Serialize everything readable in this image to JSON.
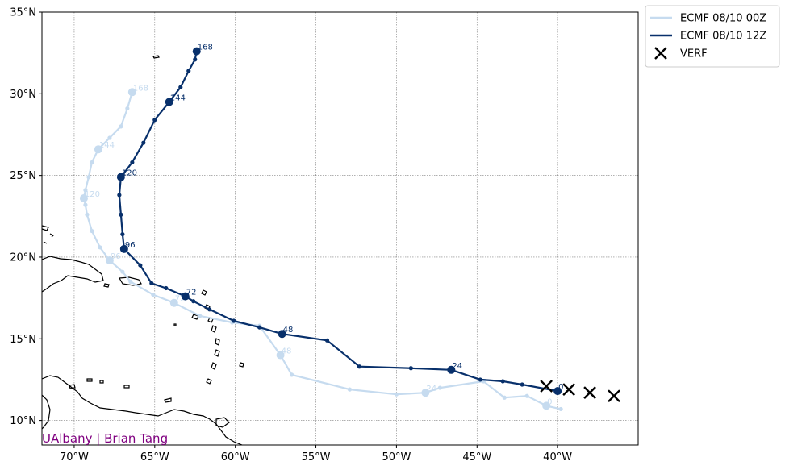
{
  "chart_data": {
    "type": "line",
    "map": "Atlantic / Caribbean basin",
    "xlim": [
      -72,
      -35
    ],
    "ylim": [
      8.5,
      35
    ],
    "x_ticks": [
      {
        "value": -70,
        "label": "70°W"
      },
      {
        "value": -65,
        "label": "65°W"
      },
      {
        "value": -60,
        "label": "60°W"
      },
      {
        "value": -55,
        "label": "55°W"
      },
      {
        "value": -50,
        "label": "50°W"
      },
      {
        "value": -45,
        "label": "45°W"
      },
      {
        "value": -40,
        "label": "40°W"
      }
    ],
    "y_ticks": [
      {
        "value": 10,
        "label": "10°N"
      },
      {
        "value": 15,
        "label": "15°N"
      },
      {
        "value": 20,
        "label": "20°N"
      },
      {
        "value": 25,
        "label": "25°N"
      },
      {
        "value": 30,
        "label": "30°N"
      },
      {
        "value": 35,
        "label": "35°N"
      }
    ],
    "grid": true,
    "legend_position": "outside-top-right",
    "credit": "UAlbany | Brian Tang",
    "credit_color": "#800080",
    "series": [
      {
        "name": "ECMF 08/10 00Z",
        "color": "#c6dbef",
        "track": [
          [
            -39.8,
            10.7
          ],
          [
            -40.7,
            10.9
          ],
          [
            -41.9,
            11.5
          ],
          [
            -43.3,
            11.4
          ],
          [
            -44.6,
            12.4
          ],
          [
            -47.3,
            12.0
          ],
          [
            -48.2,
            11.7
          ],
          [
            -50.0,
            11.6
          ],
          [
            -52.9,
            11.9
          ],
          [
            -56.5,
            12.8
          ],
          [
            -57.2,
            14.0
          ],
          [
            -58.5,
            15.8
          ],
          [
            -60.2,
            16.0
          ],
          [
            -62.2,
            16.4
          ],
          [
            -63.8,
            17.2
          ],
          [
            -65.1,
            17.7
          ],
          [
            -66.5,
            18.5
          ],
          [
            -67.0,
            19.1
          ],
          [
            -67.8,
            19.8
          ],
          [
            -68.4,
            20.6
          ],
          [
            -68.9,
            21.6
          ],
          [
            -69.2,
            22.6
          ],
          [
            -69.3,
            23.2
          ],
          [
            -69.4,
            23.6
          ],
          [
            -69.3,
            24.1
          ],
          [
            -69.1,
            24.9
          ],
          [
            -68.9,
            25.8
          ],
          [
            -68.5,
            26.6
          ],
          [
            -67.8,
            27.3
          ],
          [
            -67.1,
            28.0
          ],
          [
            -66.7,
            29.1
          ],
          [
            -66.4,
            30.1
          ]
        ],
        "labeled": [
          {
            "hour": "0",
            "lon": -40.7,
            "lat": 10.9
          },
          {
            "hour": "24",
            "lon": -48.2,
            "lat": 11.7
          },
          {
            "hour": "48",
            "lon": -57.2,
            "lat": 14.0
          },
          {
            "hour": "72",
            "lon": -63.8,
            "lat": 17.2
          },
          {
            "hour": "96",
            "lon": -67.8,
            "lat": 19.8
          },
          {
            "hour": "120",
            "lon": -69.4,
            "lat": 23.6
          },
          {
            "hour": "144",
            "lon": -68.5,
            "lat": 26.6
          },
          {
            "hour": "168",
            "lon": -66.4,
            "lat": 30.1
          }
        ]
      },
      {
        "name": "ECMF 08/10 12Z",
        "color": "#08306b",
        "track": [
          [
            -40.0,
            11.8
          ],
          [
            -42.2,
            12.2
          ],
          [
            -43.4,
            12.4
          ],
          [
            -44.8,
            12.5
          ],
          [
            -46.6,
            13.1
          ],
          [
            -49.1,
            13.2
          ],
          [
            -52.3,
            13.3
          ],
          [
            -54.3,
            14.9
          ],
          [
            -57.1,
            15.3
          ],
          [
            -58.5,
            15.7
          ],
          [
            -60.1,
            16.1
          ],
          [
            -61.6,
            16.8
          ],
          [
            -62.6,
            17.3
          ],
          [
            -63.1,
            17.6
          ],
          [
            -64.3,
            18.1
          ],
          [
            -65.2,
            18.4
          ],
          [
            -65.9,
            19.5
          ],
          [
            -66.9,
            20.5
          ],
          [
            -67.0,
            21.4
          ],
          [
            -67.1,
            22.6
          ],
          [
            -67.2,
            23.8
          ],
          [
            -67.1,
            24.9
          ],
          [
            -66.4,
            25.8
          ],
          [
            -65.7,
            27.0
          ],
          [
            -65.0,
            28.4
          ],
          [
            -64.1,
            29.5
          ],
          [
            -63.4,
            30.4
          ],
          [
            -62.9,
            31.4
          ],
          [
            -62.5,
            32.1
          ],
          [
            -62.4,
            32.6
          ]
        ],
        "labeled": [
          {
            "hour": "0",
            "lon": -40.0,
            "lat": 11.8
          },
          {
            "hour": "24",
            "lon": -46.6,
            "lat": 13.1
          },
          {
            "hour": "48",
            "lon": -57.1,
            "lat": 15.3
          },
          {
            "hour": "72",
            "lon": -63.1,
            "lat": 17.6
          },
          {
            "hour": "96",
            "lon": -66.9,
            "lat": 20.5
          },
          {
            "hour": "120",
            "lon": -67.1,
            "lat": 24.9
          },
          {
            "hour": "144",
            "lon": -64.1,
            "lat": 29.5
          },
          {
            "hour": "168",
            "lon": -62.4,
            "lat": 32.6
          }
        ]
      },
      {
        "name": "VERF",
        "color": "#000000",
        "marker": "x",
        "points": [
          [
            -40.7,
            12.1
          ],
          [
            -39.3,
            11.9
          ],
          [
            -38.0,
            11.7
          ],
          [
            -36.5,
            11.5
          ]
        ]
      }
    ]
  }
}
